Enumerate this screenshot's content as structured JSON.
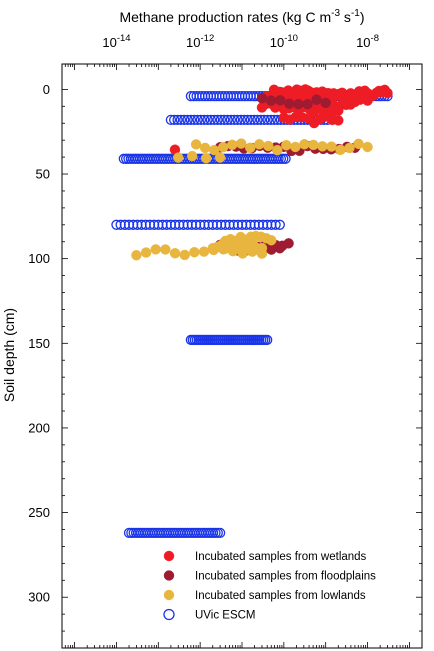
{
  "chart_data": {
    "type": "scatter",
    "title": "Methane production rates (kg C m^-3 s^-1)",
    "title_parts": {
      "main": "Methane production rates (kg C m",
      "exp1": "-3",
      "mid": " s",
      "exp2": "-1",
      "end": ")"
    },
    "xlabel": "Methane production rates (kg C m-3 s-1)",
    "ylabel": "Soil depth (cm)",
    "x_scale": "log",
    "x_axis_position": "top",
    "xlim": [
      5e-16,
      2e-07
    ],
    "ylim": [
      -15,
      330
    ],
    "y_inverted": true,
    "x_ticks": [
      {
        "mantissa": "10",
        "exponent": "-14",
        "value": 1e-14
      },
      {
        "mantissa": "10",
        "exponent": "-12",
        "value": 1e-12
      },
      {
        "mantissa": "10",
        "exponent": "-10",
        "value": 1e-10
      },
      {
        "mantissa": "10",
        "exponent": "-8",
        "value": 1e-08
      }
    ],
    "y_ticks": [
      "0",
      "50",
      "100",
      "150",
      "200",
      "250",
      "300"
    ],
    "y_tick_values": [
      0,
      50,
      100,
      150,
      200,
      250,
      300
    ],
    "grid": false,
    "legend_position": "bottom-right",
    "series": [
      {
        "name": "Incubated samples from wetlands",
        "marker": "filled-circle",
        "color": "#ee1c25",
        "groups": [
          {
            "depth": 2,
            "xmin": 5e-11,
            "xmax": 3e-08,
            "n": 42
          },
          {
            "depth": 5,
            "xmin": 4e-11,
            "xmax": 1e-08,
            "n": 28
          },
          {
            "depth": 9,
            "xmin": 3e-11,
            "xmax": 5e-09,
            "n": 22
          },
          {
            "depth": 12,
            "xmin": 1e-10,
            "xmax": 2e-09,
            "n": 12
          },
          {
            "depth": 18,
            "xmin": 1e-10,
            "xmax": 2e-09,
            "n": 10
          },
          {
            "depth": 37,
            "xmin": 2.5e-13,
            "xmax": 2.5e-13,
            "n": 1
          }
        ]
      },
      {
        "name": "Incubated samples from floodplains",
        "marker": "filled-circle",
        "color": "#9e1b32",
        "groups": [
          {
            "depth": 7,
            "xmin": 3e-11,
            "xmax": 1e-09,
            "n": 8
          },
          {
            "depth": 35,
            "xmin": 3e-12,
            "xmax": 5e-09,
            "n": 18
          },
          {
            "depth": 92,
            "xmin": 3e-12,
            "xmax": 1.3e-10,
            "n": 12
          },
          {
            "depth": 95,
            "xmin": 8e-12,
            "xmax": 8e-11,
            "n": 6
          }
        ]
      },
      {
        "name": "Incubated samples from lowlands",
        "marker": "filled-circle",
        "color": "#e8b53e",
        "groups": [
          {
            "depth": 34,
            "xmin": 8e-13,
            "xmax": 1e-08,
            "n": 20
          },
          {
            "depth": 39,
            "xmin": 3e-13,
            "xmax": 3e-12,
            "n": 4
          },
          {
            "depth": 88,
            "xmin": 4e-12,
            "xmax": 5e-11,
            "n": 10
          },
          {
            "depth": 92,
            "xmin": 2e-12,
            "xmax": 3e-11,
            "n": 12
          },
          {
            "depth": 96,
            "xmin": 3e-14,
            "xmax": 3e-11,
            "n": 14
          }
        ]
      },
      {
        "name": "UVic ESCM",
        "marker": "open-circle",
        "color": "#1a35e8",
        "groups": [
          {
            "depth": 4,
            "xmin": 6e-13,
            "xmax": 3e-08,
            "n": 70
          },
          {
            "depth": 18,
            "xmin": 2e-13,
            "xmax": 1.1e-09,
            "n": 48
          },
          {
            "depth": 41,
            "xmin": 1.5e-14,
            "xmax": 1.1e-10,
            "n": 70
          },
          {
            "depth": 80,
            "xmin": 1e-14,
            "xmax": 8e-11,
            "n": 40
          },
          {
            "depth": 148,
            "xmin": 6e-13,
            "xmax": 4e-11,
            "n": 40
          },
          {
            "depth": 262,
            "xmin": 2e-14,
            "xmax": 3e-12,
            "n": 40
          }
        ]
      }
    ]
  }
}
